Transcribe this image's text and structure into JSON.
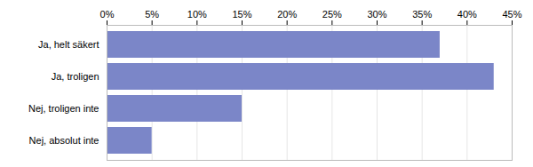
{
  "chart_data": {
    "type": "bar",
    "orientation": "horizontal",
    "categories": [
      "Ja, helt säkert",
      "Ja, troligen",
      "Nej, troligen inte",
      "Nej, absolut inte"
    ],
    "values": [
      37,
      43,
      15,
      5
    ],
    "color": "#7b86c8",
    "xlim": [
      0,
      45
    ],
    "xticks": [
      {
        "value": 0,
        "label": "0%"
      },
      {
        "value": 5,
        "label": "5%"
      },
      {
        "value": 10,
        "label": "10%"
      },
      {
        "value": 15,
        "label": "15%"
      },
      {
        "value": 20,
        "label": "20%"
      },
      {
        "value": 25,
        "label": "25%"
      },
      {
        "value": 30,
        "label": "30%"
      },
      {
        "value": 35,
        "label": "35%"
      },
      {
        "value": 40,
        "label": "40%"
      },
      {
        "value": 45,
        "label": "45%"
      }
    ],
    "grid": true
  }
}
